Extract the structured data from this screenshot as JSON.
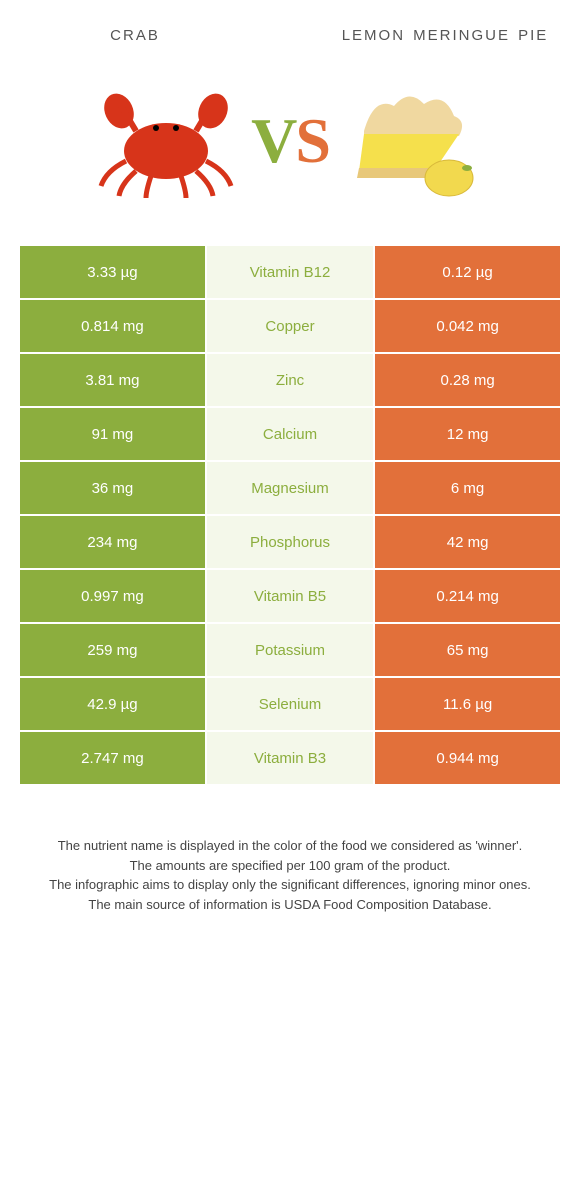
{
  "header": {
    "left_label": "crab",
    "right_label": "lemon meringue pie"
  },
  "vs": {
    "v": "V",
    "s": "S"
  },
  "colors": {
    "left": "#8cae3e",
    "right": "#e2703a",
    "mid_bg_left": "#f4f8ea",
    "mid_bg_right": "#fcefe8",
    "mid_text_left": "#8cae3e",
    "mid_text_right": "#e2703a"
  },
  "rows": [
    {
      "left": "3.33 µg",
      "name": "Vitamin B12",
      "right": "0.12 µg",
      "winner": "left"
    },
    {
      "left": "0.814 mg",
      "name": "Copper",
      "right": "0.042 mg",
      "winner": "left"
    },
    {
      "left": "3.81 mg",
      "name": "Zinc",
      "right": "0.28 mg",
      "winner": "left"
    },
    {
      "left": "91 mg",
      "name": "Calcium",
      "right": "12 mg",
      "winner": "left"
    },
    {
      "left": "36 mg",
      "name": "Magnesium",
      "right": "6 mg",
      "winner": "left"
    },
    {
      "left": "234 mg",
      "name": "Phosphorus",
      "right": "42 mg",
      "winner": "left"
    },
    {
      "left": "0.997 mg",
      "name": "Vitamin B5",
      "right": "0.214 mg",
      "winner": "left"
    },
    {
      "left": "259 mg",
      "name": "Potassium",
      "right": "65 mg",
      "winner": "left"
    },
    {
      "left": "42.9 µg",
      "name": "Selenium",
      "right": "11.6 µg",
      "winner": "left"
    },
    {
      "left": "2.747 mg",
      "name": "Vitamin B3",
      "right": "0.944 mg",
      "winner": "left"
    }
  ],
  "footnotes": [
    "The nutrient name is displayed in the color of the food we considered as 'winner'.",
    "The amounts are specified per 100 gram of the product.",
    "The infographic aims to display only the significant differences, ignoring minor ones.",
    "The main source of information is USDA Food Composition Database."
  ]
}
